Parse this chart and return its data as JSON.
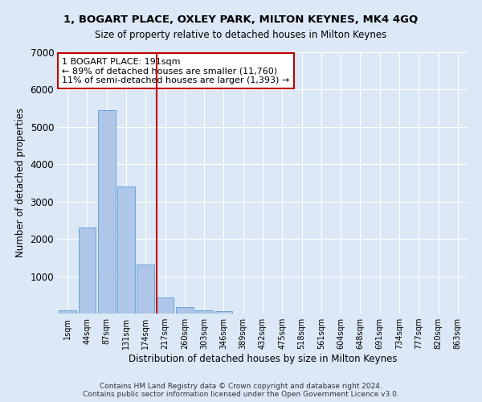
{
  "title1": "1, BOGART PLACE, OXLEY PARK, MILTON KEYNES, MK4 4GQ",
  "title2": "Size of property relative to detached houses in Milton Keynes",
  "xlabel": "Distribution of detached houses by size in Milton Keynes",
  "ylabel": "Number of detached properties",
  "annotation_line1": "1 BOGART PLACE: 191sqm",
  "annotation_line2": "← 89% of detached houses are smaller (11,760)",
  "annotation_line3": "11% of semi-detached houses are larger (1,393) →",
  "footer1": "Contains HM Land Registry data © Crown copyright and database right 2024.",
  "footer2": "Contains public sector information licensed under the Open Government Licence v3.0.",
  "categories": [
    "1sqm",
    "44sqm",
    "87sqm",
    "131sqm",
    "174sqm",
    "217sqm",
    "260sqm",
    "303sqm",
    "346sqm",
    "389sqm",
    "432sqm",
    "475sqm",
    "518sqm",
    "561sqm",
    "604sqm",
    "648sqm",
    "691sqm",
    "734sqm",
    "777sqm",
    "820sqm",
    "863sqm"
  ],
  "values": [
    80,
    2300,
    5450,
    3400,
    1320,
    430,
    170,
    90,
    60,
    0,
    0,
    0,
    0,
    0,
    0,
    0,
    0,
    0,
    0,
    0,
    0
  ],
  "bar_color": "#aec6e8",
  "bar_edge_color": "#5b9bd5",
  "vline_color": "#c00000",
  "vline_index": 4.57,
  "background_color": "#dce8f5",
  "grid_color": "#ffffff",
  "ylim": [
    0,
    7000
  ],
  "yticks": [
    0,
    1000,
    2000,
    3000,
    4000,
    5000,
    6000,
    7000
  ]
}
